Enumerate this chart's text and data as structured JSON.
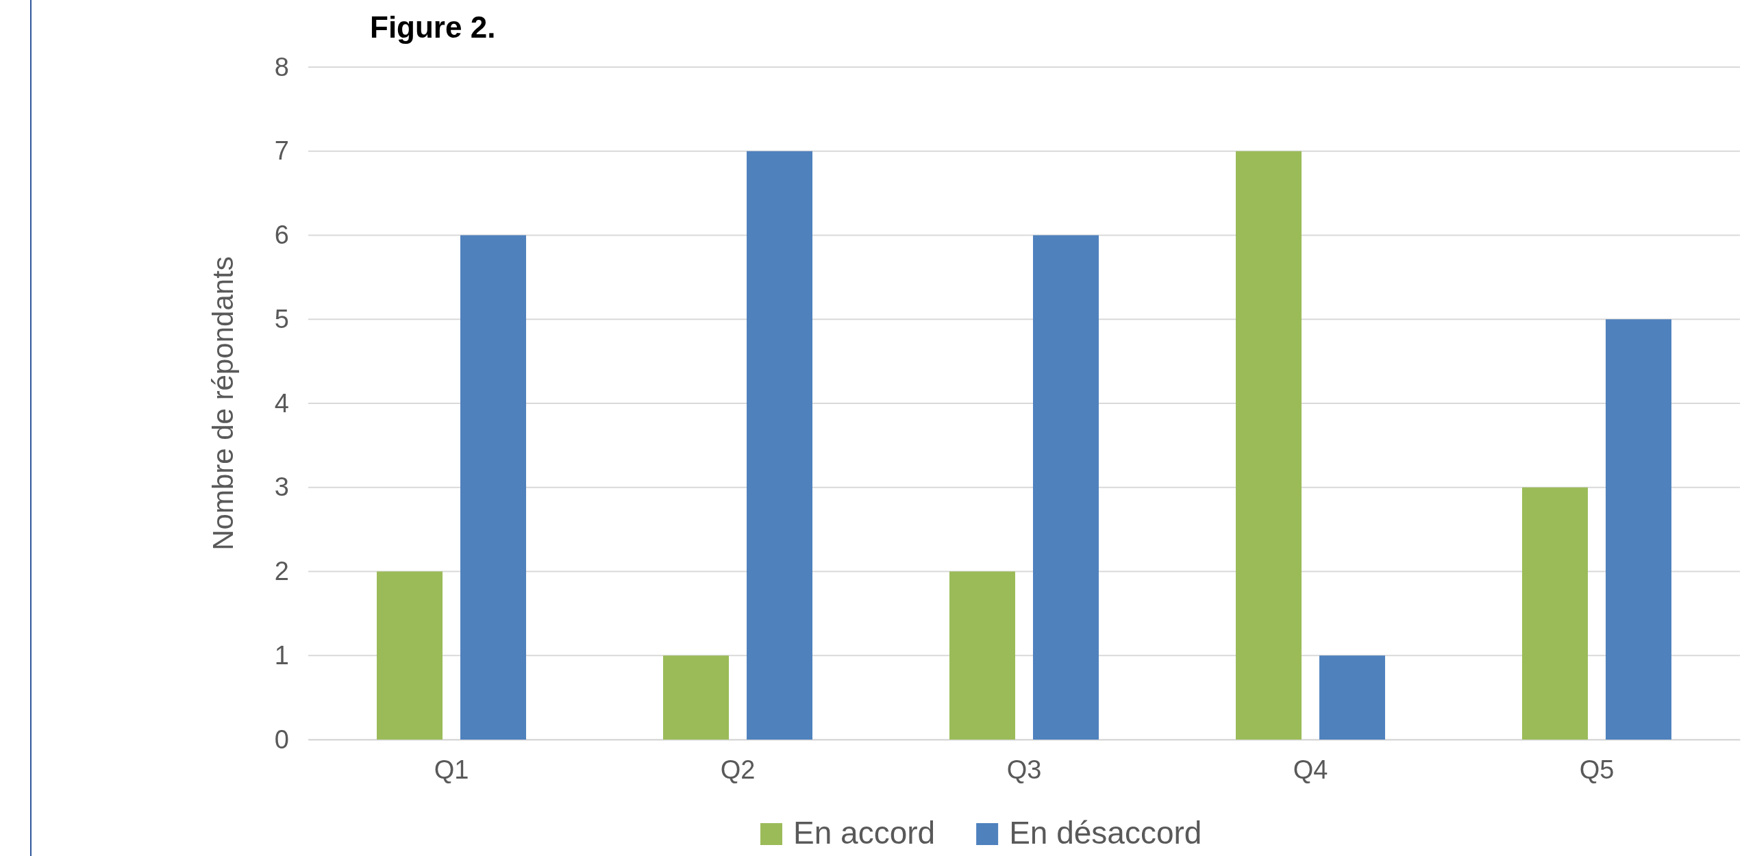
{
  "chart_data": {
    "type": "bar",
    "title": "Figure 2.",
    "ylabel": "Nombre de répondants",
    "categories": [
      "Q1",
      "Q2",
      "Q3",
      "Q4",
      "Q5"
    ],
    "series": [
      {
        "name": "En accord",
        "color": "#9bbb59",
        "values": [
          2,
          1,
          2,
          7,
          3
        ]
      },
      {
        "name": "En désaccord",
        "color": "#4f81bd",
        "values": [
          6,
          7,
          6,
          1,
          5
        ]
      }
    ],
    "ylim": [
      0,
      8
    ],
    "yticks": [
      0,
      1,
      2,
      3,
      4,
      5,
      6,
      7,
      8
    ],
    "grid": "y",
    "legend": "bottom"
  }
}
